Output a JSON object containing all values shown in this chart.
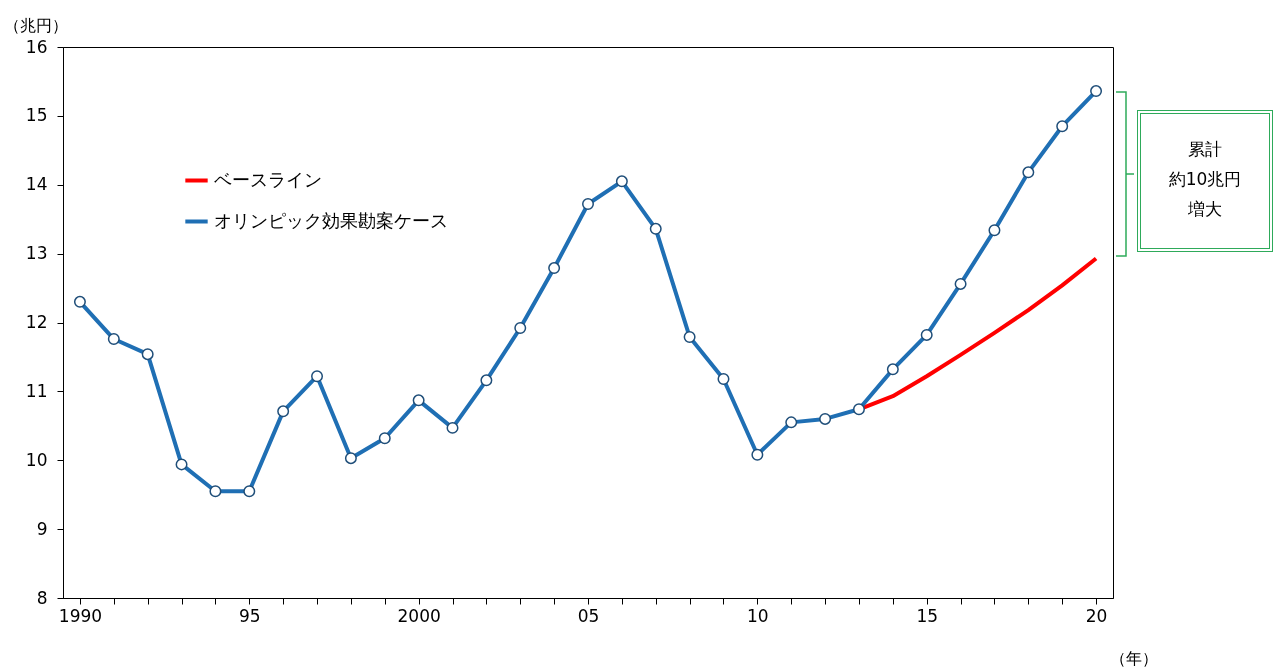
{
  "chart_data": {
    "type": "line",
    "ylabel": "（兆円）",
    "xlabel": "（年）",
    "x": [
      1990,
      1991,
      1992,
      1993,
      1994,
      1995,
      1996,
      1997,
      1998,
      1999,
      2000,
      2001,
      2002,
      2003,
      2004,
      2005,
      2006,
      2007,
      2008,
      2009,
      2010,
      2011,
      2012,
      2013,
      2014,
      2015,
      2016,
      2017,
      2018,
      2019,
      2020
    ],
    "series": [
      {
        "name": "ベースライン",
        "color": "#ff0000",
        "type": "line",
        "marker": "none",
        "x": [
          2013,
          2014,
          2015,
          2016,
          2017,
          2018,
          2019,
          2020
        ],
        "values": [
          10.74,
          10.93,
          11.22,
          11.53,
          11.85,
          12.18,
          12.54,
          12.93
        ]
      },
      {
        "name": "オリンピック効果勘案ケース",
        "color": "#1f6fb4",
        "type": "line",
        "marker": "circle",
        "values": [
          12.3,
          11.76,
          11.54,
          9.94,
          9.55,
          9.55,
          10.71,
          11.22,
          10.03,
          10.32,
          10.87,
          10.47,
          11.16,
          11.92,
          12.79,
          13.72,
          14.05,
          13.36,
          11.79,
          11.18,
          10.08,
          10.55,
          10.6,
          10.74,
          11.32,
          11.82,
          12.56,
          13.34,
          14.18,
          14.85,
          15.36
        ]
      }
    ],
    "xlim": [
      1989.5,
      2020.5
    ],
    "xticks": [
      {
        "value": 1990,
        "label": "1990"
      },
      {
        "value": 1991,
        "label": null
      },
      {
        "value": 1992,
        "label": null
      },
      {
        "value": 1993,
        "label": null
      },
      {
        "value": 1994,
        "label": null
      },
      {
        "value": 1995,
        "label": "95"
      },
      {
        "value": 1996,
        "label": null
      },
      {
        "value": 1997,
        "label": null
      },
      {
        "value": 1998,
        "label": null
      },
      {
        "value": 1999,
        "label": null
      },
      {
        "value": 2000,
        "label": "2000"
      },
      {
        "value": 2001,
        "label": null
      },
      {
        "value": 2002,
        "label": null
      },
      {
        "value": 2003,
        "label": null
      },
      {
        "value": 2004,
        "label": null
      },
      {
        "value": 2005,
        "label": "05"
      },
      {
        "value": 2006,
        "label": null
      },
      {
        "value": 2007,
        "label": null
      },
      {
        "value": 2008,
        "label": null
      },
      {
        "value": 2009,
        "label": null
      },
      {
        "value": 2010,
        "label": "10"
      },
      {
        "value": 2011,
        "label": null
      },
      {
        "value": 2012,
        "label": null
      },
      {
        "value": 2013,
        "label": null
      },
      {
        "value": 2014,
        "label": null
      },
      {
        "value": 2015,
        "label": "15"
      },
      {
        "value": 2016,
        "label": null
      },
      {
        "value": 2017,
        "label": null
      },
      {
        "value": 2018,
        "label": null
      },
      {
        "value": 2019,
        "label": null
      },
      {
        "value": 2020,
        "label": "20"
      }
    ],
    "ylim": [
      8,
      16
    ],
    "yticks": [
      8,
      9,
      10,
      11,
      12,
      13,
      14,
      15,
      16
    ],
    "grid": false,
    "legend": "top left",
    "line_style": "solid",
    "annotations": [
      "累計",
      "約10兆円",
      "増大"
    ]
  }
}
